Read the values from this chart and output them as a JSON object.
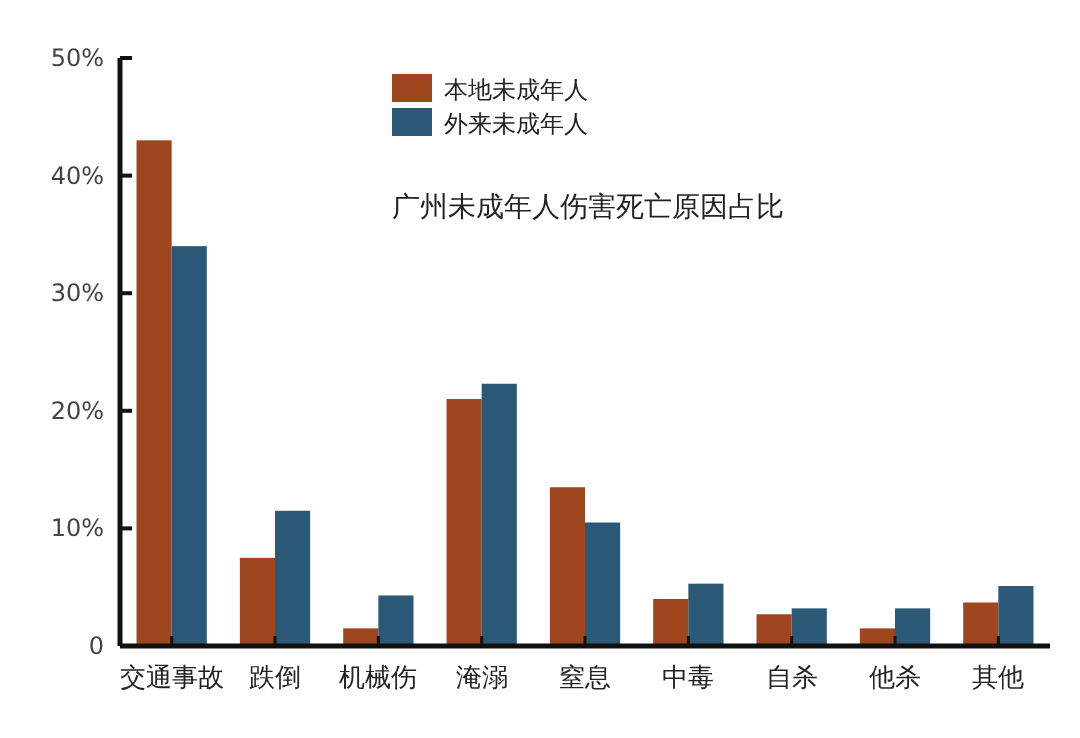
{
  "chart_data": {
    "type": "bar",
    "title": "广州未成年人伤害死亡原因占比",
    "categories": [
      "交通事故",
      "跌倒",
      "机械伤",
      "淹溺",
      "窒息",
      "中毒",
      "自杀",
      "他杀",
      "其他"
    ],
    "series": [
      {
        "name": "本地未成年人",
        "color": "#a0461f",
        "values": [
          43,
          7.5,
          1.5,
          21,
          13.5,
          4,
          2.7,
          1.5,
          3.7
        ]
      },
      {
        "name": "外来未成年人",
        "color": "#2b5877",
        "values": [
          34,
          11.5,
          4.3,
          22.3,
          10.5,
          5.3,
          3.2,
          3.2,
          5.1
        ]
      }
    ],
    "ylim": [
      0,
      50
    ],
    "yticks": [
      {
        "value": 0,
        "label": "0"
      },
      {
        "value": 10,
        "label": "10%"
      },
      {
        "value": 20,
        "label": "20%"
      },
      {
        "value": 30,
        "label": "30%"
      },
      {
        "value": 40,
        "label": "40%"
      },
      {
        "value": 50,
        "label": "50%"
      }
    ],
    "legend": "top",
    "grid": false
  }
}
